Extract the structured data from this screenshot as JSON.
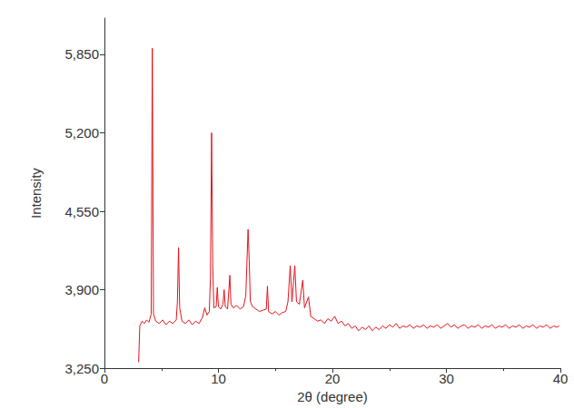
{
  "chart_data": {
    "type": "line",
    "xlabel": "2θ (degree)",
    "ylabel": "Intensity",
    "color": "#e3141c",
    "xlim": [
      0,
      40
    ],
    "xticks": [
      0,
      10,
      20,
      30,
      40
    ],
    "ylim": [
      3250,
      6150
    ],
    "yticks": [
      3250,
      3900,
      4550,
      5200,
      5850
    ],
    "grid": false,
    "x": [
      3.0,
      3.1,
      3.3,
      3.5,
      3.7,
      3.9,
      4.1,
      4.2,
      4.3,
      4.5,
      4.8,
      5.1,
      5.4,
      5.7,
      6.0,
      6.3,
      6.4,
      6.5,
      6.6,
      6.8,
      7.1,
      7.4,
      7.7,
      8.0,
      8.3,
      8.6,
      8.8,
      9.0,
      9.2,
      9.3,
      9.4,
      9.5,
      9.6,
      9.8,
      9.9,
      10.0,
      10.2,
      10.4,
      10.5,
      10.6,
      10.8,
      11.0,
      11.1,
      11.3,
      11.6,
      11.9,
      12.2,
      12.4,
      12.6,
      12.7,
      12.8,
      13.0,
      13.3,
      13.6,
      13.9,
      14.2,
      14.3,
      14.4,
      14.7,
      15.0,
      15.3,
      15.6,
      15.9,
      16.1,
      16.3,
      16.45,
      16.7,
      16.85,
      17.1,
      17.4,
      17.55,
      17.9,
      18.1,
      18.4,
      18.7,
      19.0,
      19.3,
      19.6,
      19.9,
      20.2,
      20.5,
      20.8,
      21.1,
      21.4,
      21.7,
      22.0,
      22.3,
      22.6,
      22.9,
      23.2,
      23.5,
      23.8,
      24.1,
      24.4,
      24.7,
      25.0,
      25.3,
      25.6,
      25.9,
      26.2,
      26.5,
      26.8,
      27.1,
      27.4,
      27.7,
      28.0,
      28.3,
      28.6,
      28.9,
      29.2,
      29.5,
      29.8,
      30.1,
      30.4,
      30.7,
      31.0,
      31.3,
      31.6,
      31.9,
      32.2,
      32.5,
      32.8,
      33.1,
      33.4,
      33.7,
      34.0,
      34.3,
      34.6,
      34.9,
      35.2,
      35.5,
      35.8,
      36.1,
      36.4,
      36.7,
      37.0,
      37.3,
      37.6,
      37.9,
      38.2,
      38.5,
      38.8,
      39.1,
      39.4,
      39.7,
      39.9
    ],
    "values": [
      3300,
      3600,
      3640,
      3620,
      3650,
      3630,
      3700,
      5900,
      3700,
      3640,
      3620,
      3650,
      3610,
      3640,
      3620,
      3650,
      3800,
      4250,
      3750,
      3640,
      3620,
      3650,
      3610,
      3640,
      3620,
      3670,
      3750,
      3690,
      3720,
      4000,
      5200,
      4100,
      3750,
      3760,
      3920,
      3760,
      3740,
      3780,
      3900,
      3760,
      3740,
      4020,
      3780,
      3750,
      3770,
      3740,
      3760,
      3850,
      4400,
      4150,
      3800,
      3760,
      3740,
      3720,
      3730,
      3740,
      3930,
      3720,
      3700,
      3720,
      3690,
      3710,
      3720,
      3800,
      4100,
      3800,
      4100,
      3800,
      3780,
      3980,
      3750,
      3840,
      3680,
      3660,
      3640,
      3650,
      3620,
      3660,
      3640,
      3680,
      3620,
      3640,
      3600,
      3620,
      3580,
      3600,
      3560,
      3590,
      3570,
      3600,
      3560,
      3590,
      3570,
      3600,
      3580,
      3610,
      3590,
      3620,
      3580,
      3600,
      3590,
      3610,
      3580,
      3600,
      3590,
      3610,
      3580,
      3600,
      3590,
      3610,
      3580,
      3600,
      3620,
      3590,
      3610,
      3580,
      3600,
      3610,
      3580,
      3600,
      3590,
      3610,
      3580,
      3600,
      3590,
      3610,
      3580,
      3600,
      3590,
      3610,
      3580,
      3600,
      3590,
      3610,
      3580,
      3600,
      3590,
      3610,
      3580,
      3600,
      3590,
      3610,
      3580,
      3600,
      3590,
      3600
    ]
  }
}
